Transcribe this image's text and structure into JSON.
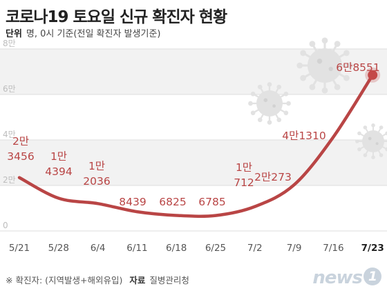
{
  "header": {
    "title": "코로나19 토요일 신규 확진자 현황",
    "unit_key": "단위",
    "unit_value": "명, 0시 기준(전일 확진자 발생기준)"
  },
  "footer": {
    "note": "※ 확진자: (지역발생+해외유입)",
    "source_key": "자료",
    "source_value": "질병관리청"
  },
  "logo": {
    "text": "news",
    "badge": "1"
  },
  "chart_data": {
    "type": "line",
    "title": "코로나19 토요일 신규 확진자 현황",
    "xlabel": "",
    "ylabel": "",
    "ylim": [
      0,
      80000
    ],
    "y_ticks": [
      0,
      20000,
      40000,
      60000,
      80000
    ],
    "y_tick_labels": [
      "0",
      "2만",
      "4만",
      "6만",
      "8만"
    ],
    "grid": "horizontal bands",
    "categories": [
      "5/21",
      "5/28",
      "6/4",
      "6/11",
      "6/18",
      "6/25",
      "7/2",
      "7/9",
      "7/16",
      "7/23"
    ],
    "values": [
      23456,
      14394,
      12036,
      8439,
      6825,
      6785,
      10712,
      20273,
      41310,
      68551
    ],
    "data_labels": [
      [
        "2만",
        "3456"
      ],
      [
        "1만",
        "4394"
      ],
      [
        "1만",
        "2036"
      ],
      [
        "8439"
      ],
      [
        "6825"
      ],
      [
        "6785"
      ],
      [
        "1만",
        "712"
      ],
      [
        "2만273"
      ],
      [
        "4만1310"
      ],
      [
        "6만8551"
      ]
    ],
    "colors": {
      "line": "#b94545",
      "label": "#b94545",
      "marker": "#c44848",
      "band": "#f2f2f2",
      "grid": "#dddddd"
    }
  }
}
